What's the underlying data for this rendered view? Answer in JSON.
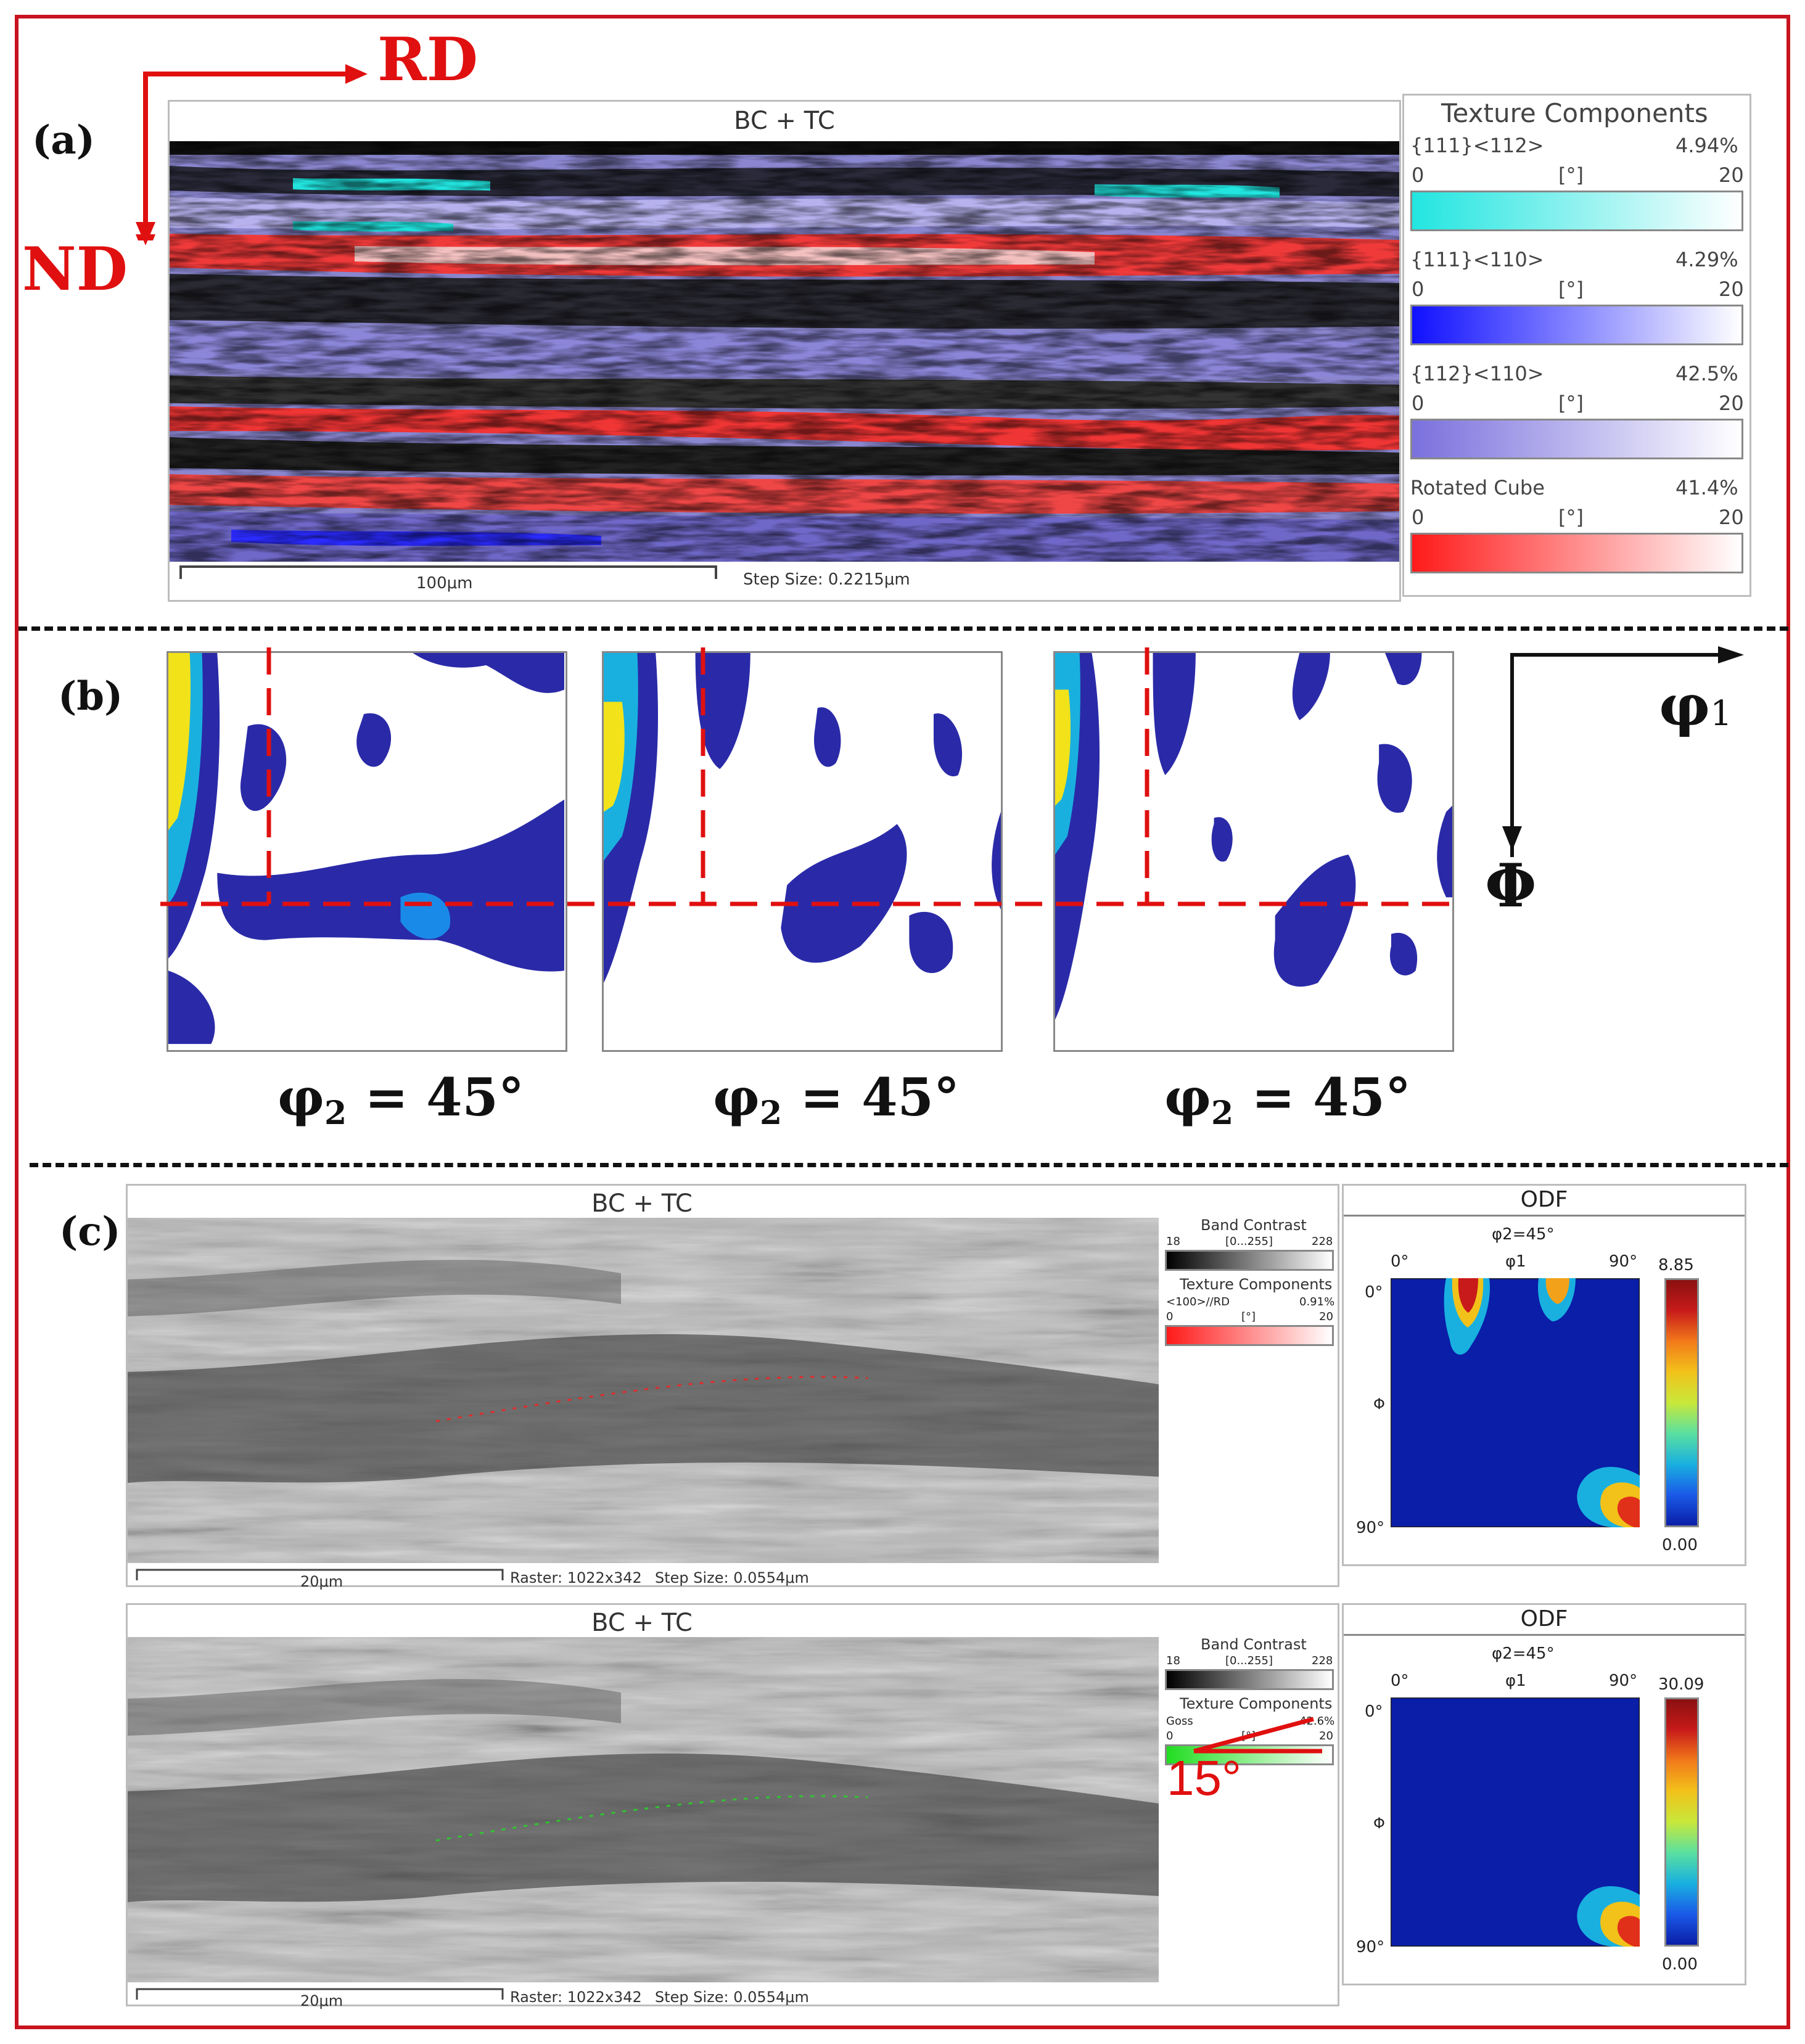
{
  "axes": {
    "rd": "RD",
    "nd": "ND",
    "phi1_symbol": "φ",
    "phi1_sub": "1",
    "Phi": "Φ"
  },
  "colors": {
    "frame": "#c8141e",
    "rotated_cube": "#ff1a1a",
    "goss": "#22dd22",
    "cyan": "#22e5e0",
    "blue": "#1010ff",
    "violet": "#7a70dd"
  },
  "panel_a": {
    "label": "(a)",
    "map_title": "BC + TC",
    "scale_bar": "100μm",
    "step_size": "Step Size: 0.2215μm",
    "legend_title": "Texture Components",
    "components": [
      {
        "name": "{111}<112>",
        "fraction": "4.94%",
        "min": "0",
        "unit": "[°]",
        "max": "20",
        "color": "#22e5e0"
      },
      {
        "name": "{111}<110>",
        "fraction": "4.29%",
        "min": "0",
        "unit": "[°]",
        "max": "20",
        "color": "#1010ff"
      },
      {
        "name": "{112}<110>",
        "fraction": "42.5%",
        "min": "0",
        "unit": "[°]",
        "max": "20",
        "color": "#7a70dd"
      },
      {
        "name": "Rotated Cube",
        "fraction": "41.4%",
        "min": "0",
        "unit": "[°]",
        "max": "20",
        "color": "#ff1a1a"
      }
    ]
  },
  "panel_b": {
    "label": "(b)",
    "sections": [
      {
        "caption_phi": "φ",
        "caption_sub": "2",
        "caption_value": " = 45°"
      },
      {
        "caption_phi": "φ",
        "caption_sub": "2",
        "caption_value": " = 45°"
      },
      {
        "caption_phi": "φ",
        "caption_sub": "2",
        "caption_value": " = 45°"
      }
    ]
  },
  "panel_c": {
    "label": "(c)",
    "angle_label": "15°",
    "maps": [
      {
        "title": "BC + TC",
        "scale_bar": "20μm",
        "raster": "Raster: 1022x342",
        "step_size": "Step Size: 0.0554μm",
        "bc_title": "Band Contrast",
        "bc_min": "18",
        "bc_range": "[0...255]",
        "bc_max": "228",
        "tc_title": "Texture Components",
        "tc_name": "<100>//RD",
        "tc_fraction": "0.91%",
        "tc_min": "0",
        "tc_unit": "[°]",
        "tc_max": "20",
        "tc_color": "#ff1a1a",
        "odf_title": "ODF",
        "odf_section": "φ2=45°",
        "odf_x_start": "0°",
        "odf_x_label": "φ1",
        "odf_x_end": "90°",
        "odf_y_start": "0°",
        "odf_y_label": "Φ",
        "odf_y_end": "90°",
        "odf_max": "8.85",
        "odf_min": "0.00"
      },
      {
        "title": "BC + TC",
        "scale_bar": "20μm",
        "raster": "Raster: 1022x342",
        "step_size": "Step Size: 0.0554μm",
        "bc_title": "Band Contrast",
        "bc_min": "18",
        "bc_range": "[0...255]",
        "bc_max": "228",
        "tc_title": "Texture Components",
        "tc_name": "Goss",
        "tc_fraction": "42.6%",
        "tc_min": "0",
        "tc_unit": "[°]",
        "tc_max": "20",
        "tc_color": "#22dd22",
        "odf_title": "ODF",
        "odf_section": "φ2=45°",
        "odf_x_start": "0°",
        "odf_x_label": "φ1",
        "odf_x_end": "90°",
        "odf_y_start": "0°",
        "odf_y_label": "Φ",
        "odf_y_end": "90°",
        "odf_max": "30.09",
        "odf_min": "0.00"
      }
    ]
  }
}
